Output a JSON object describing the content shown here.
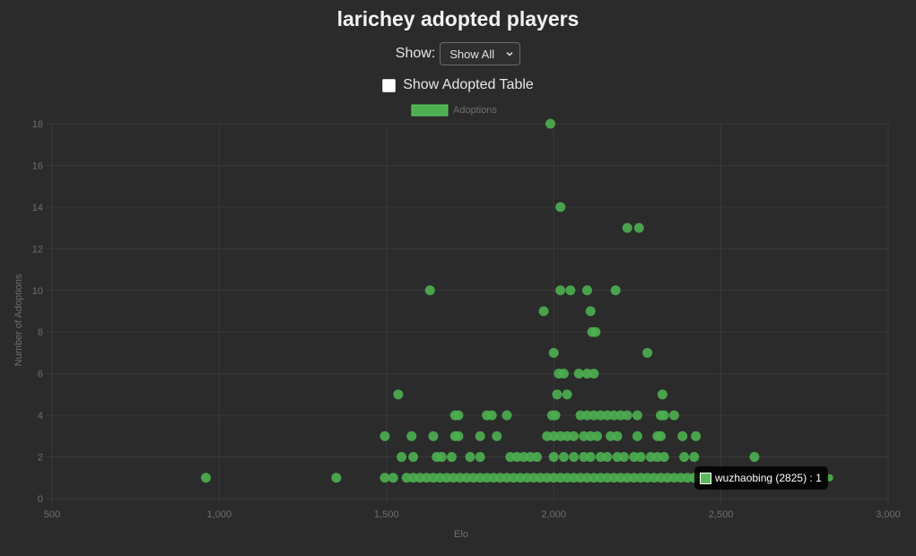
{
  "header": {
    "title": "larichey adopted players"
  },
  "filter": {
    "label": "Show:",
    "selected": "Show All"
  },
  "toggle": {
    "label": "Show Adopted Table",
    "checked": false
  },
  "tooltip": {
    "text": "wuzhaobing (2825) : 1"
  },
  "colors": {
    "point": "#4caf50",
    "background": "#2b2b2b",
    "grid": "#3a3a3a",
    "axis_text": "#6e6e6e"
  },
  "chart_data": {
    "type": "scatter",
    "xlabel": "Elo",
    "ylabel": "Number of Adoptions",
    "xlim": [
      500,
      3000
    ],
    "ylim": [
      0,
      18
    ],
    "x_ticks": [
      500,
      1000,
      1500,
      2000,
      2500,
      3000
    ],
    "x_tick_labels": [
      "500",
      "1,000",
      "1,500",
      "2,000",
      "2,500",
      "3,000"
    ],
    "y_ticks": [
      0,
      2,
      4,
      6,
      8,
      10,
      12,
      14,
      16,
      18
    ],
    "y_tick_labels": [
      "0",
      "2",
      "4",
      "6",
      "8",
      "10",
      "12",
      "14",
      "16",
      "18"
    ],
    "grid": true,
    "legend_position": "top",
    "series": [
      {
        "name": "Adoptions",
        "points": [
          [
            960,
            1
          ],
          [
            1350,
            1
          ],
          [
            1495,
            1
          ],
          [
            1520,
            1
          ],
          [
            1560,
            1
          ],
          [
            1580,
            1
          ],
          [
            1600,
            1
          ],
          [
            1620,
            1
          ],
          [
            1640,
            1
          ],
          [
            1660,
            1
          ],
          [
            1680,
            1
          ],
          [
            1700,
            1
          ],
          [
            1720,
            1
          ],
          [
            1740,
            1
          ],
          [
            1760,
            1
          ],
          [
            1780,
            1
          ],
          [
            1800,
            1
          ],
          [
            1820,
            1
          ],
          [
            1840,
            1
          ],
          [
            1860,
            1
          ],
          [
            1880,
            1
          ],
          [
            1900,
            1
          ],
          [
            1920,
            1
          ],
          [
            1940,
            1
          ],
          [
            1960,
            1
          ],
          [
            1980,
            1
          ],
          [
            2000,
            1
          ],
          [
            2020,
            1
          ],
          [
            2040,
            1
          ],
          [
            2060,
            1
          ],
          [
            2080,
            1
          ],
          [
            2100,
            1
          ],
          [
            2120,
            1
          ],
          [
            2140,
            1
          ],
          [
            2160,
            1
          ],
          [
            2180,
            1
          ],
          [
            2200,
            1
          ],
          [
            2220,
            1
          ],
          [
            2240,
            1
          ],
          [
            2260,
            1
          ],
          [
            2280,
            1
          ],
          [
            2300,
            1
          ],
          [
            2320,
            1
          ],
          [
            2340,
            1
          ],
          [
            2360,
            1
          ],
          [
            2380,
            1
          ],
          [
            2400,
            1
          ],
          [
            2420,
            1
          ],
          [
            2825,
            1
          ],
          [
            1545,
            2
          ],
          [
            1580,
            2
          ],
          [
            1650,
            2
          ],
          [
            1665,
            2
          ],
          [
            1695,
            2
          ],
          [
            1750,
            2
          ],
          [
            1780,
            2
          ],
          [
            1870,
            2
          ],
          [
            1890,
            2
          ],
          [
            1910,
            2
          ],
          [
            1930,
            2
          ],
          [
            1950,
            2
          ],
          [
            2000,
            2
          ],
          [
            2030,
            2
          ],
          [
            2060,
            2
          ],
          [
            2090,
            2
          ],
          [
            2110,
            2
          ],
          [
            2140,
            2
          ],
          [
            2160,
            2
          ],
          [
            2190,
            2
          ],
          [
            2210,
            2
          ],
          [
            2240,
            2
          ],
          [
            2260,
            2
          ],
          [
            2290,
            2
          ],
          [
            2310,
            2
          ],
          [
            2330,
            2
          ],
          [
            2390,
            2
          ],
          [
            2420,
            2
          ],
          [
            2600,
            2
          ],
          [
            1495,
            3
          ],
          [
            1575,
            3
          ],
          [
            1640,
            3
          ],
          [
            1705,
            3
          ],
          [
            1715,
            3
          ],
          [
            1780,
            3
          ],
          [
            1830,
            3
          ],
          [
            1980,
            3
          ],
          [
            2000,
            3
          ],
          [
            2020,
            3
          ],
          [
            2040,
            3
          ],
          [
            2060,
            3
          ],
          [
            2090,
            3
          ],
          [
            2110,
            3
          ],
          [
            2130,
            3
          ],
          [
            2170,
            3
          ],
          [
            2190,
            3
          ],
          [
            2250,
            3
          ],
          [
            2310,
            3
          ],
          [
            2320,
            3
          ],
          [
            2385,
            3
          ],
          [
            2425,
            3
          ],
          [
            1705,
            4
          ],
          [
            1715,
            4
          ],
          [
            1800,
            4
          ],
          [
            1815,
            4
          ],
          [
            1860,
            4
          ],
          [
            1995,
            4
          ],
          [
            2005,
            4
          ],
          [
            2080,
            4
          ],
          [
            2100,
            4
          ],
          [
            2120,
            4
          ],
          [
            2140,
            4
          ],
          [
            2160,
            4
          ],
          [
            2180,
            4
          ],
          [
            2200,
            4
          ],
          [
            2220,
            4
          ],
          [
            2250,
            4
          ],
          [
            2320,
            4
          ],
          [
            2330,
            4
          ],
          [
            2360,
            4
          ],
          [
            1535,
            5
          ],
          [
            2010,
            5
          ],
          [
            2040,
            5
          ],
          [
            2325,
            5
          ],
          [
            2015,
            6
          ],
          [
            2030,
            6
          ],
          [
            2075,
            6
          ],
          [
            2100,
            6
          ],
          [
            2120,
            6
          ],
          [
            2000,
            7
          ],
          [
            2280,
            7
          ],
          [
            2115,
            8
          ],
          [
            2125,
            8
          ],
          [
            1970,
            9
          ],
          [
            2110,
            9
          ],
          [
            1630,
            10
          ],
          [
            2020,
            10
          ],
          [
            2050,
            10
          ],
          [
            2100,
            10
          ],
          [
            2185,
            10
          ],
          [
            2220,
            13
          ],
          [
            2255,
            13
          ],
          [
            2020,
            14
          ],
          [
            1990,
            18
          ]
        ]
      }
    ]
  }
}
